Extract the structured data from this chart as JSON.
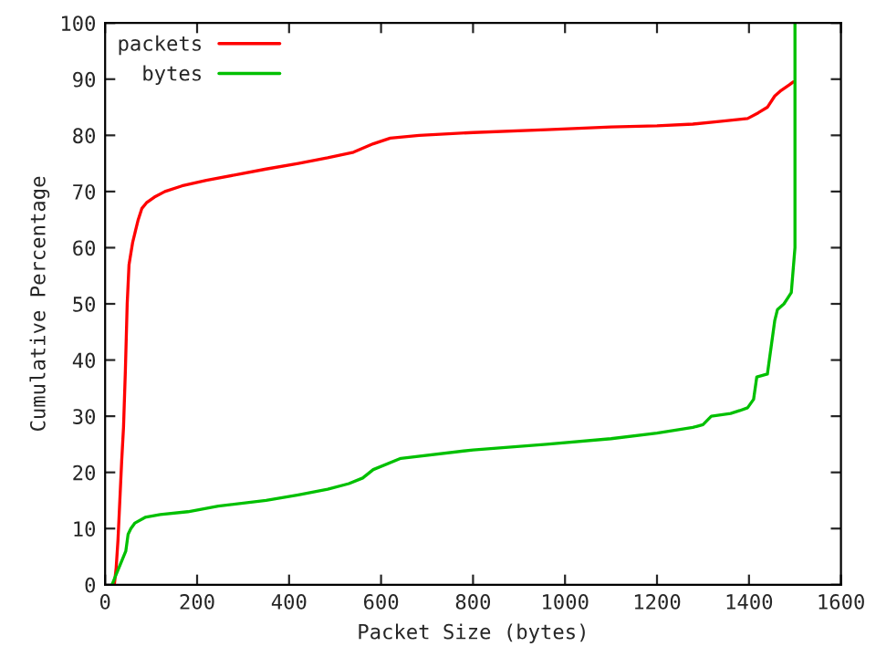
{
  "chart_data": {
    "type": "line",
    "xlabel": "Packet Size (bytes)",
    "ylabel": "Cumulative Percentage",
    "xlim": [
      0,
      1600
    ],
    "xticks": [
      0,
      200,
      400,
      600,
      800,
      1000,
      1200,
      1400,
      1600
    ],
    "ylim": [
      0,
      100
    ],
    "yticks": [
      0,
      10,
      20,
      30,
      40,
      50,
      60,
      70,
      80,
      90,
      100
    ],
    "legend": "top left",
    "grid": false,
    "series": [
      {
        "name": "packets",
        "color": "#ff0000",
        "x": [
          20,
          24,
          28,
          32,
          36,
          40,
          44,
          48,
          52,
          56,
          60,
          66,
          72,
          80,
          90,
          107,
          130,
          167,
          220,
          286,
          350,
          420,
          484,
          540,
          583,
          620,
          683,
          800,
          960,
          1100,
          1200,
          1278,
          1340,
          1397,
          1420,
          1440,
          1456,
          1470,
          1488,
          1496
        ],
        "values": [
          0,
          3,
          8,
          15,
          22,
          28,
          38,
          50,
          57,
          59,
          61,
          63,
          65,
          67,
          68,
          69,
          70,
          71,
          72,
          73,
          74,
          75,
          76,
          77,
          78.5,
          79.5,
          80,
          80.5,
          81,
          81.5,
          81.7,
          82,
          82.5,
          83,
          84,
          85,
          87,
          88,
          89,
          89.5
        ]
      },
      {
        "name": "bytes",
        "color": "#00c000",
        "x": [
          15,
          25,
          35,
          45,
          50,
          56,
          65,
          87,
          120,
          180,
          246,
          350,
          420,
          484,
          530,
          560,
          583,
          643,
          800,
          960,
          1100,
          1200,
          1278,
          1300,
          1318,
          1360,
          1380,
          1397,
          1410,
          1417,
          1440,
          1456,
          1462,
          1476,
          1484,
          1492,
          1500,
          1500
        ],
        "values": [
          0,
          2,
          4,
          6,
          9,
          10,
          11,
          12,
          12.5,
          13,
          14,
          15,
          16,
          17,
          18,
          19,
          20.5,
          22.5,
          24,
          25,
          26,
          27,
          28,
          28.5,
          30,
          30.5,
          31,
          31.5,
          33,
          37,
          37.5,
          47,
          49,
          50,
          51,
          52,
          60,
          100
        ]
      }
    ]
  }
}
